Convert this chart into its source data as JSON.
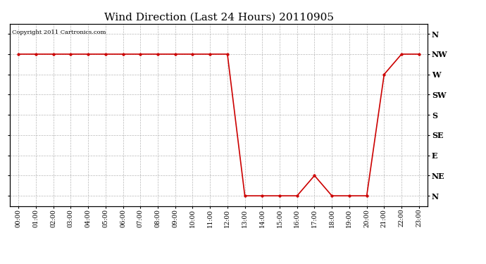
{
  "title": "Wind Direction (Last 24 Hours) 20110905",
  "copyright_text": "Copyright 2011 Cartronics.com",
  "line_color": "#cc0000",
  "marker_color": "#cc0000",
  "bg_color": "#ffffff",
  "grid_color": "#b0b0b0",
  "x_labels": [
    "00:00",
    "01:00",
    "02:00",
    "03:00",
    "04:00",
    "05:00",
    "06:00",
    "07:00",
    "08:00",
    "09:00",
    "10:00",
    "11:00",
    "12:00",
    "13:00",
    "14:00",
    "15:00",
    "16:00",
    "17:00",
    "18:00",
    "19:00",
    "20:00",
    "21:00",
    "22:00",
    "23:00"
  ],
  "y_labels": [
    "N",
    "NE",
    "E",
    "SE",
    "S",
    "SW",
    "W",
    "NW",
    "N"
  ],
  "data_x": [
    0,
    1,
    2,
    3,
    4,
    5,
    6,
    7,
    8,
    9,
    10,
    11,
    12,
    13,
    14,
    15,
    16,
    17,
    18,
    19,
    20,
    21,
    22,
    23
  ],
  "data_y": [
    7,
    7,
    7,
    7,
    7,
    7,
    7,
    7,
    7,
    7,
    7,
    7,
    7,
    0,
    0,
    0,
    0,
    1,
    0,
    0,
    0,
    6,
    7,
    7
  ]
}
